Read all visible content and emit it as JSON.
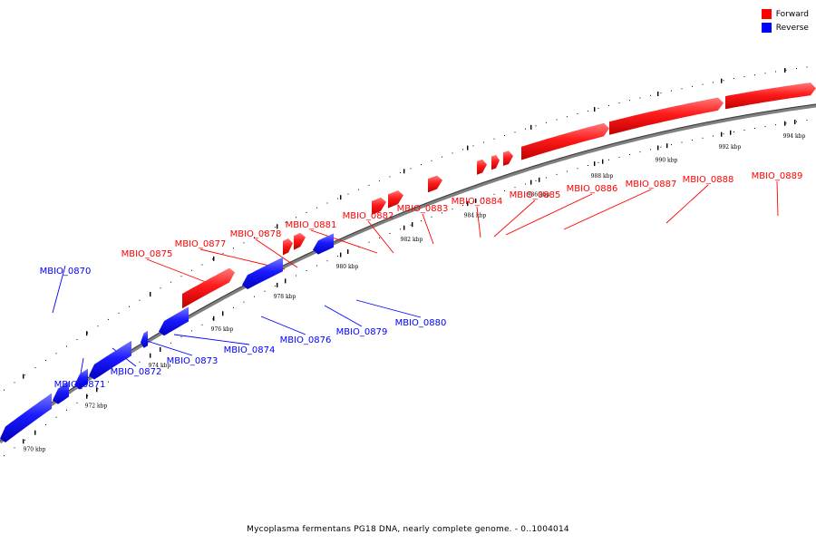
{
  "legend": {
    "forward_label": "Forward",
    "reverse_label": "Reverse",
    "forward_color": "#ff0000",
    "reverse_color": "#0000ff"
  },
  "caption": "Mycoplasma fermentans PG18 DNA, nearly complete genome. - 0..1004014",
  "ticks": [
    "970 kbp",
    "972 kbp",
    "974 kbp",
    "976 kbp",
    "978 kbp",
    "980 kbp",
    "982 kbp",
    "984 kbp",
    "986 kbp",
    "988 kbp",
    "990 kbp",
    "992 kbp",
    "994 kbp"
  ],
  "genes": [
    {
      "name": "MBIO_0870",
      "strand": "reverse"
    },
    {
      "name": "MBIO_0871",
      "strand": "reverse"
    },
    {
      "name": "MBIO_0872",
      "strand": "reverse"
    },
    {
      "name": "MBIO_0873",
      "strand": "reverse"
    },
    {
      "name": "MBIO_0874",
      "strand": "reverse"
    },
    {
      "name": "MBIO_0875",
      "strand": "forward"
    },
    {
      "name": "MBIO_0876",
      "strand": "reverse"
    },
    {
      "name": "MBIO_0877",
      "strand": "forward"
    },
    {
      "name": "MBIO_0878",
      "strand": "forward"
    },
    {
      "name": "MBIO_0879",
      "strand": "reverse"
    },
    {
      "name": "MBIO_0880",
      "strand": "reverse"
    },
    {
      "name": "MBIO_0881",
      "strand": "forward"
    },
    {
      "name": "MBIO_0882",
      "strand": "forward"
    },
    {
      "name": "MBIO_0883",
      "strand": "forward"
    },
    {
      "name": "MBIO_0884",
      "strand": "forward"
    },
    {
      "name": "MBIO_0885",
      "strand": "forward"
    },
    {
      "name": "MBIO_0886",
      "strand": "forward"
    },
    {
      "name": "MBIO_0887",
      "strand": "forward"
    },
    {
      "name": "MBIO_0888",
      "strand": "forward"
    },
    {
      "name": "MBIO_0889",
      "strand": "forward"
    }
  ]
}
